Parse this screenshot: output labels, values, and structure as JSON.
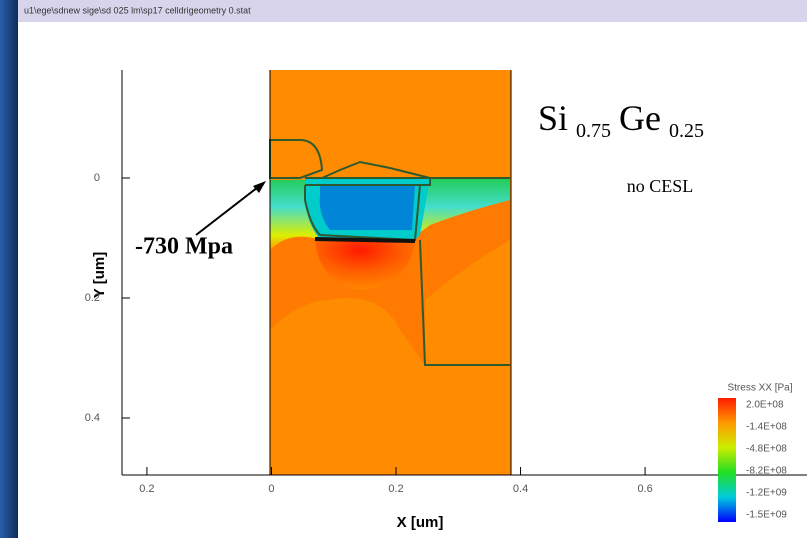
{
  "chart_data": {
    "type": "contour",
    "window_title": "u1\\ege\\sdnew sige\\sd 025 lm\\sp17 celldrigeometry 0.stat",
    "title": "Si",
    "title_sub1": "0.75",
    "title_mid": "Ge",
    "title_sub2": "0.25",
    "subtitle": "no CESL",
    "annotation": "-730 Mpa",
    "x_label": "X [um]",
    "y_label": "Y [um]",
    "xlim": [
      -0.24,
      0.86
    ],
    "ylim": [
      -0.18,
      0.495
    ],
    "y_inverted": true,
    "xticks": [
      {
        "value": -0.2,
        "label": "0.2"
      },
      0,
      0.2,
      0.4,
      0.6
    ],
    "yticks": [
      0,
      0.2,
      0.4
    ],
    "colorbar": {
      "title": "Stress XX [Pa]",
      "labels": [
        "2.0E+08",
        "-1.4E+08",
        "-4.8E+08",
        "-8.2E+08",
        "-1.2E+09",
        "-1.5E+09"
      ]
    }
  }
}
